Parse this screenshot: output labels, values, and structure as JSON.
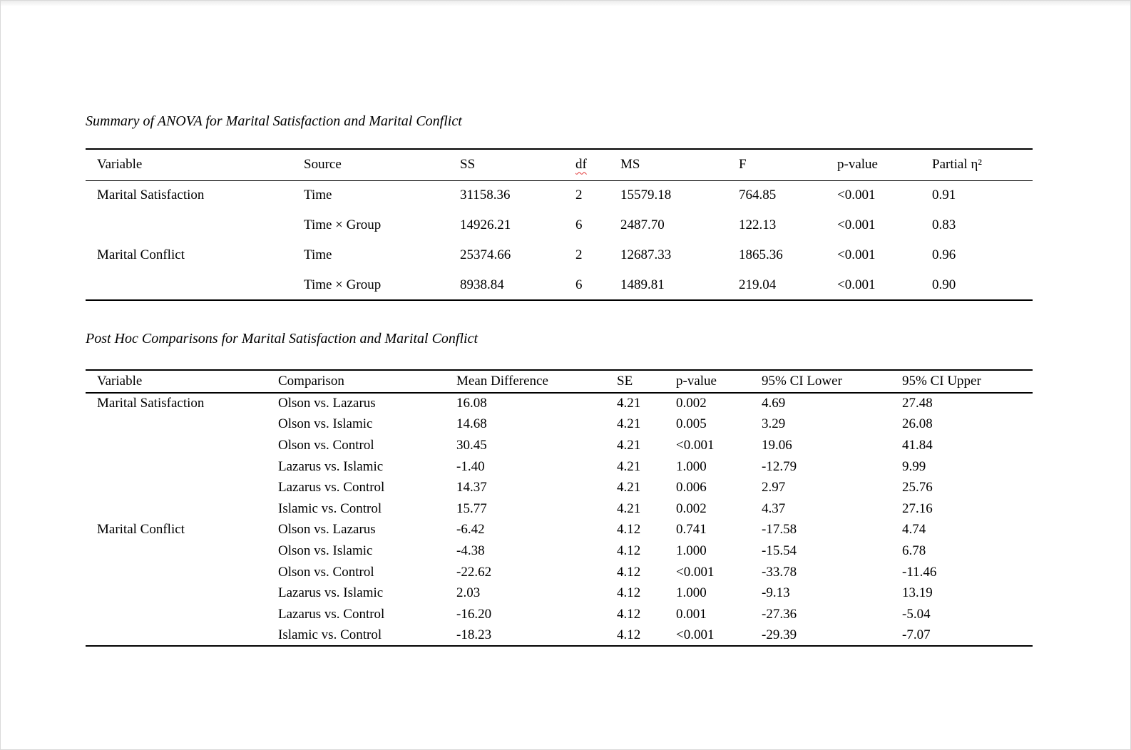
{
  "anova": {
    "title": "Summary of ANOVA for Marital Satisfaction and Marital Conflict",
    "columns": [
      "Variable",
      "Source",
      "SS",
      "df",
      "MS",
      "F",
      "p-value",
      "Partial η²"
    ],
    "rows": [
      {
        "variable": "Marital Satisfaction",
        "source": "Time",
        "ss": "31158.36",
        "df": "2",
        "ms": "15579.18",
        "f": "764.85",
        "p": "<0.001",
        "partial_eta2": "0.91"
      },
      {
        "variable": "",
        "source": "Time × Group",
        "ss": "14926.21",
        "df": "6",
        "ms": "2487.70",
        "f": "122.13",
        "p": "<0.001",
        "partial_eta2": "0.83"
      },
      {
        "variable": "Marital Conflict",
        "source": "Time",
        "ss": "25374.66",
        "df": "2",
        "ms": "12687.33",
        "f": "1865.36",
        "p": "<0.001",
        "partial_eta2": "0.96"
      },
      {
        "variable": "",
        "source": "Time × Group",
        "ss": "8938.84",
        "df": "6",
        "ms": "1489.81",
        "f": "219.04",
        "p": "<0.001",
        "partial_eta2": "0.90"
      }
    ]
  },
  "posthoc": {
    "title": "Post Hoc Comparisons for Marital Satisfaction and Marital Conflict",
    "columns": [
      "Variable",
      "Comparison",
      "Mean Difference",
      "SE",
      "p-value",
      "95% CI Lower",
      "95% CI Upper"
    ],
    "rows": [
      {
        "variable": "Marital Satisfaction",
        "comparison": "Olson vs. Lazarus",
        "mean_diff": "16.08",
        "se": "4.21",
        "p": "0.002",
        "ci_lower": "4.69",
        "ci_upper": "27.48"
      },
      {
        "variable": "",
        "comparison": "Olson vs. Islamic",
        "mean_diff": "14.68",
        "se": "4.21",
        "p": "0.005",
        "ci_lower": "3.29",
        "ci_upper": "26.08"
      },
      {
        "variable": "",
        "comparison": "Olson vs. Control",
        "mean_diff": "30.45",
        "se": "4.21",
        "p": "<0.001",
        "ci_lower": "19.06",
        "ci_upper": "41.84"
      },
      {
        "variable": "",
        "comparison": "Lazarus vs. Islamic",
        "mean_diff": "-1.40",
        "se": "4.21",
        "p": "1.000",
        "ci_lower": "-12.79",
        "ci_upper": "9.99"
      },
      {
        "variable": "",
        "comparison": "Lazarus vs. Control",
        "mean_diff": "14.37",
        "se": "4.21",
        "p": "0.006",
        "ci_lower": "2.97",
        "ci_upper": "25.76"
      },
      {
        "variable": "",
        "comparison": "Islamic vs. Control",
        "mean_diff": "15.77",
        "se": "4.21",
        "p": "0.002",
        "ci_lower": "4.37",
        "ci_upper": "27.16"
      },
      {
        "variable": "Marital Conflict",
        "comparison": "Olson vs. Lazarus",
        "mean_diff": "-6.42",
        "se": "4.12",
        "p": "0.741",
        "ci_lower": "-17.58",
        "ci_upper": "4.74"
      },
      {
        "variable": "",
        "comparison": "Olson vs. Islamic",
        "mean_diff": "-4.38",
        "se": "4.12",
        "p": "1.000",
        "ci_lower": "-15.54",
        "ci_upper": "6.78"
      },
      {
        "variable": "",
        "comparison": "Olson vs. Control",
        "mean_diff": "-22.62",
        "se": "4.12",
        "p": "<0.001",
        "ci_lower": "-33.78",
        "ci_upper": "-11.46"
      },
      {
        "variable": "",
        "comparison": "Lazarus vs. Islamic",
        "mean_diff": "2.03",
        "se": "4.12",
        "p": "1.000",
        "ci_lower": "-9.13",
        "ci_upper": "13.19"
      },
      {
        "variable": "",
        "comparison": "Lazarus vs. Control",
        "mean_diff": "-16.20",
        "se": "4.12",
        "p": "0.001",
        "ci_lower": "-27.36",
        "ci_upper": "-5.04"
      },
      {
        "variable": "",
        "comparison": "Islamic vs. Control",
        "mean_diff": "-18.23",
        "se": "4.12",
        "p": "<0.001",
        "ci_lower": "-29.39",
        "ci_upper": "-7.07"
      }
    ]
  }
}
